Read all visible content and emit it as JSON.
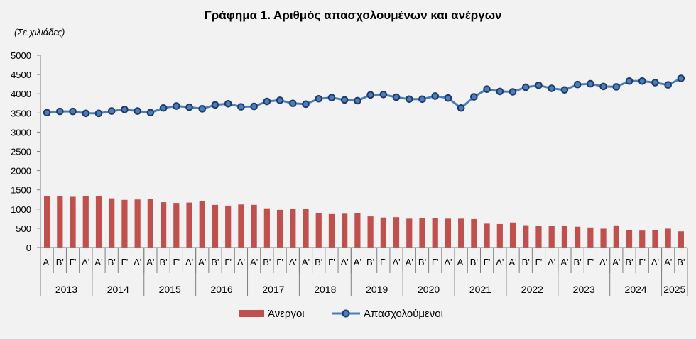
{
  "chart_data": {
    "type": "bar",
    "title": "Γράφημα 1. Αριθμός απασχολουμένων και ανέργων",
    "units_note": "(Σε χιλιάδες)",
    "ylim": [
      0,
      5000
    ],
    "yticks": [
      0,
      500,
      1000,
      1500,
      2000,
      2500,
      3000,
      3500,
      4000,
      4500,
      5000
    ],
    "grid": false,
    "legend_position": "bottom",
    "categories": [
      "Α'",
      "Β'",
      "Γ'",
      "Δ'",
      "Α'",
      "Β'",
      "Γ'",
      "Δ'",
      "Α'",
      "Β'",
      "Γ'",
      "Δ'",
      "Α'",
      "Β'",
      "Γ'",
      "Δ'",
      "Α'",
      "Β'",
      "Γ'",
      "Δ'",
      "Α'",
      "Β'",
      "Γ'",
      "Δ'",
      "Α'",
      "Β'",
      "Γ'",
      "Δ'",
      "Α'",
      "Β'",
      "Γ'",
      "Δ'",
      "Α'",
      "Β'",
      "Γ'",
      "Δ'",
      "Α'",
      "Β'",
      "Γ'",
      "Δ'",
      "Α'",
      "Β'",
      "Γ'",
      "Δ'",
      "Α'",
      "Β'",
      "Γ'",
      "Δ'",
      "Α'",
      "Β'"
    ],
    "years": [
      {
        "label": "2013",
        "count": 4
      },
      {
        "label": "2014",
        "count": 4
      },
      {
        "label": "2015",
        "count": 4
      },
      {
        "label": "2016",
        "count": 4
      },
      {
        "label": "2017",
        "count": 4
      },
      {
        "label": "2018",
        "count": 4
      },
      {
        "label": "2019",
        "count": 4
      },
      {
        "label": "2020",
        "count": 4
      },
      {
        "label": "2021",
        "count": 4
      },
      {
        "label": "2022",
        "count": 4
      },
      {
        "label": "2023",
        "count": 4
      },
      {
        "label": "2024",
        "count": 4
      },
      {
        "label": "2025",
        "count": 2
      }
    ],
    "series": [
      {
        "name": "Άνεργοι",
        "type": "bar",
        "color": "#c0504d",
        "values": [
          1340,
          1330,
          1320,
          1340,
          1345,
          1280,
          1240,
          1250,
          1270,
          1180,
          1160,
          1170,
          1200,
          1110,
          1090,
          1120,
          1110,
          1020,
          980,
          1000,
          1000,
          900,
          870,
          880,
          900,
          810,
          780,
          790,
          750,
          770,
          760,
          750,
          750,
          740,
          620,
          610,
          650,
          580,
          560,
          560,
          560,
          540,
          520,
          490,
          575,
          460,
          440,
          450,
          490,
          420
        ]
      },
      {
        "name": "Απασχολούμενοι",
        "type": "line",
        "color": "#4a7ebb",
        "marker_color": "#1f3864",
        "values": [
          3510,
          3540,
          3540,
          3490,
          3490,
          3550,
          3590,
          3550,
          3510,
          3630,
          3680,
          3650,
          3610,
          3710,
          3740,
          3660,
          3670,
          3800,
          3830,
          3750,
          3730,
          3870,
          3900,
          3840,
          3820,
          3970,
          3980,
          3910,
          3860,
          3860,
          3940,
          3890,
          3630,
          3920,
          4120,
          4060,
          4050,
          4170,
          4220,
          4140,
          4100,
          4240,
          4260,
          4190,
          4180,
          4330,
          4330,
          4290,
          4230,
          4400
        ]
      }
    ]
  }
}
